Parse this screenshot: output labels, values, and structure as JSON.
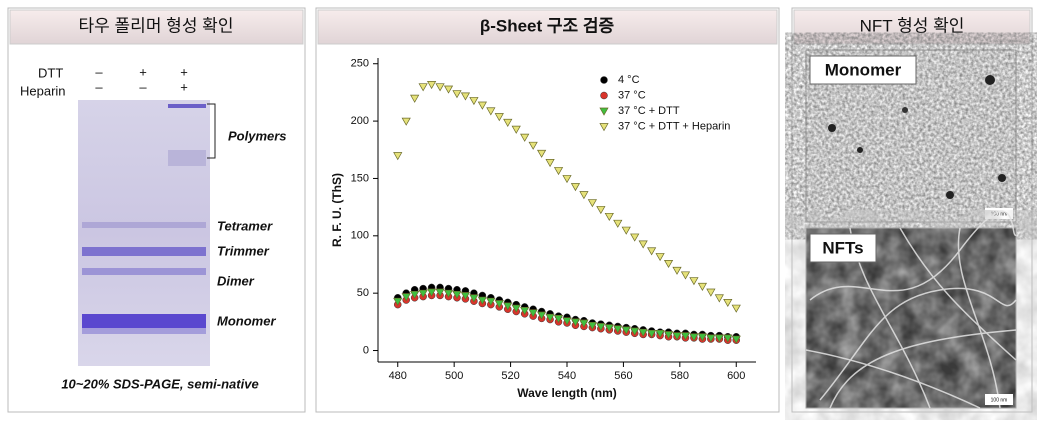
{
  "gel": {
    "title": "타우 폴리머 형성 확인",
    "row_labels": [
      "DTT",
      "Heparin"
    ],
    "lanes": [
      [
        "–",
        "–"
      ],
      [
        "+",
        "–"
      ],
      [
        "+",
        "+"
      ]
    ],
    "band_labels": [
      "Polymers",
      "Tetramer",
      "Trimmer",
      "Dimer",
      "Monomer"
    ],
    "caption": "10~20% SDS-PAGE, semi-native"
  },
  "chart_data": {
    "type": "scatter",
    "title": "β-Sheet 구조 검증",
    "x_label": "Wave length (nm)",
    "y_label": "R. F. U. (ThS)",
    "xlim": [
      473,
      607
    ],
    "ylim": [
      -10,
      255
    ],
    "xticks": [
      480,
      500,
      520,
      540,
      560,
      580,
      600
    ],
    "yticks": [
      0,
      50,
      100,
      150,
      200,
      250
    ],
    "legend": "upper right",
    "x": [
      480,
      483,
      486,
      489,
      492,
      495,
      498,
      501,
      504,
      507,
      510,
      513,
      516,
      519,
      522,
      525,
      528,
      531,
      534,
      537,
      540,
      543,
      546,
      549,
      552,
      555,
      558,
      561,
      564,
      567,
      570,
      573,
      576,
      579,
      582,
      585,
      588,
      591,
      594,
      597,
      600
    ],
    "series": [
      {
        "name": "4 °C",
        "color": "#000000",
        "marker": "circle",
        "values": [
          46,
          50,
          53,
          54,
          55,
          55,
          54,
          53,
          52,
          50,
          48,
          46,
          44,
          42,
          40,
          38,
          36,
          34,
          32,
          30,
          29,
          27,
          26,
          24,
          23,
          22,
          21,
          20,
          19,
          18,
          17,
          16,
          16,
          15,
          15,
          14,
          14,
          13,
          13,
          12,
          12
        ]
      },
      {
        "name": "37 °C",
        "color": "#d9342b",
        "marker": "circle",
        "values": [
          40,
          44,
          46,
          47,
          48,
          48,
          47,
          46,
          45,
          43,
          41,
          40,
          38,
          36,
          34,
          32,
          30,
          28,
          27,
          25,
          24,
          22,
          21,
          20,
          19,
          18,
          17,
          16,
          15,
          14,
          14,
          13,
          12,
          12,
          11,
          11,
          10,
          10,
          10,
          9,
          9
        ]
      },
      {
        "name": "37 °C + DTT",
        "color": "#3fbf3f",
        "marker": "triangle-down",
        "values": [
          43,
          47,
          49,
          50,
          51,
          51,
          50,
          49,
          48,
          46,
          44,
          43,
          41,
          39,
          37,
          35,
          33,
          31,
          29,
          28,
          26,
          25,
          24,
          22,
          21,
          20,
          19,
          18,
          17,
          16,
          15,
          15,
          14,
          13,
          13,
          12,
          12,
          11,
          11,
          11,
          10
        ]
      },
      {
        "name": "37 °C + DTT + Heparin",
        "color": "#e6e27a",
        "marker": "triangle-down",
        "values": [
          170,
          200,
          220,
          230,
          232,
          230,
          228,
          224,
          222,
          218,
          214,
          209,
          204,
          199,
          193,
          186,
          179,
          172,
          164,
          157,
          150,
          143,
          136,
          129,
          123,
          117,
          111,
          105,
          99,
          93,
          87,
          82,
          76,
          70,
          66,
          61,
          56,
          51,
          46,
          42,
          37
        ]
      }
    ]
  },
  "tem": {
    "title": "NFT 형성 확인",
    "images": [
      {
        "label": "Monomer",
        "scale": "100 nm"
      },
      {
        "label": "NFTs",
        "scale": "100 nm"
      }
    ]
  }
}
